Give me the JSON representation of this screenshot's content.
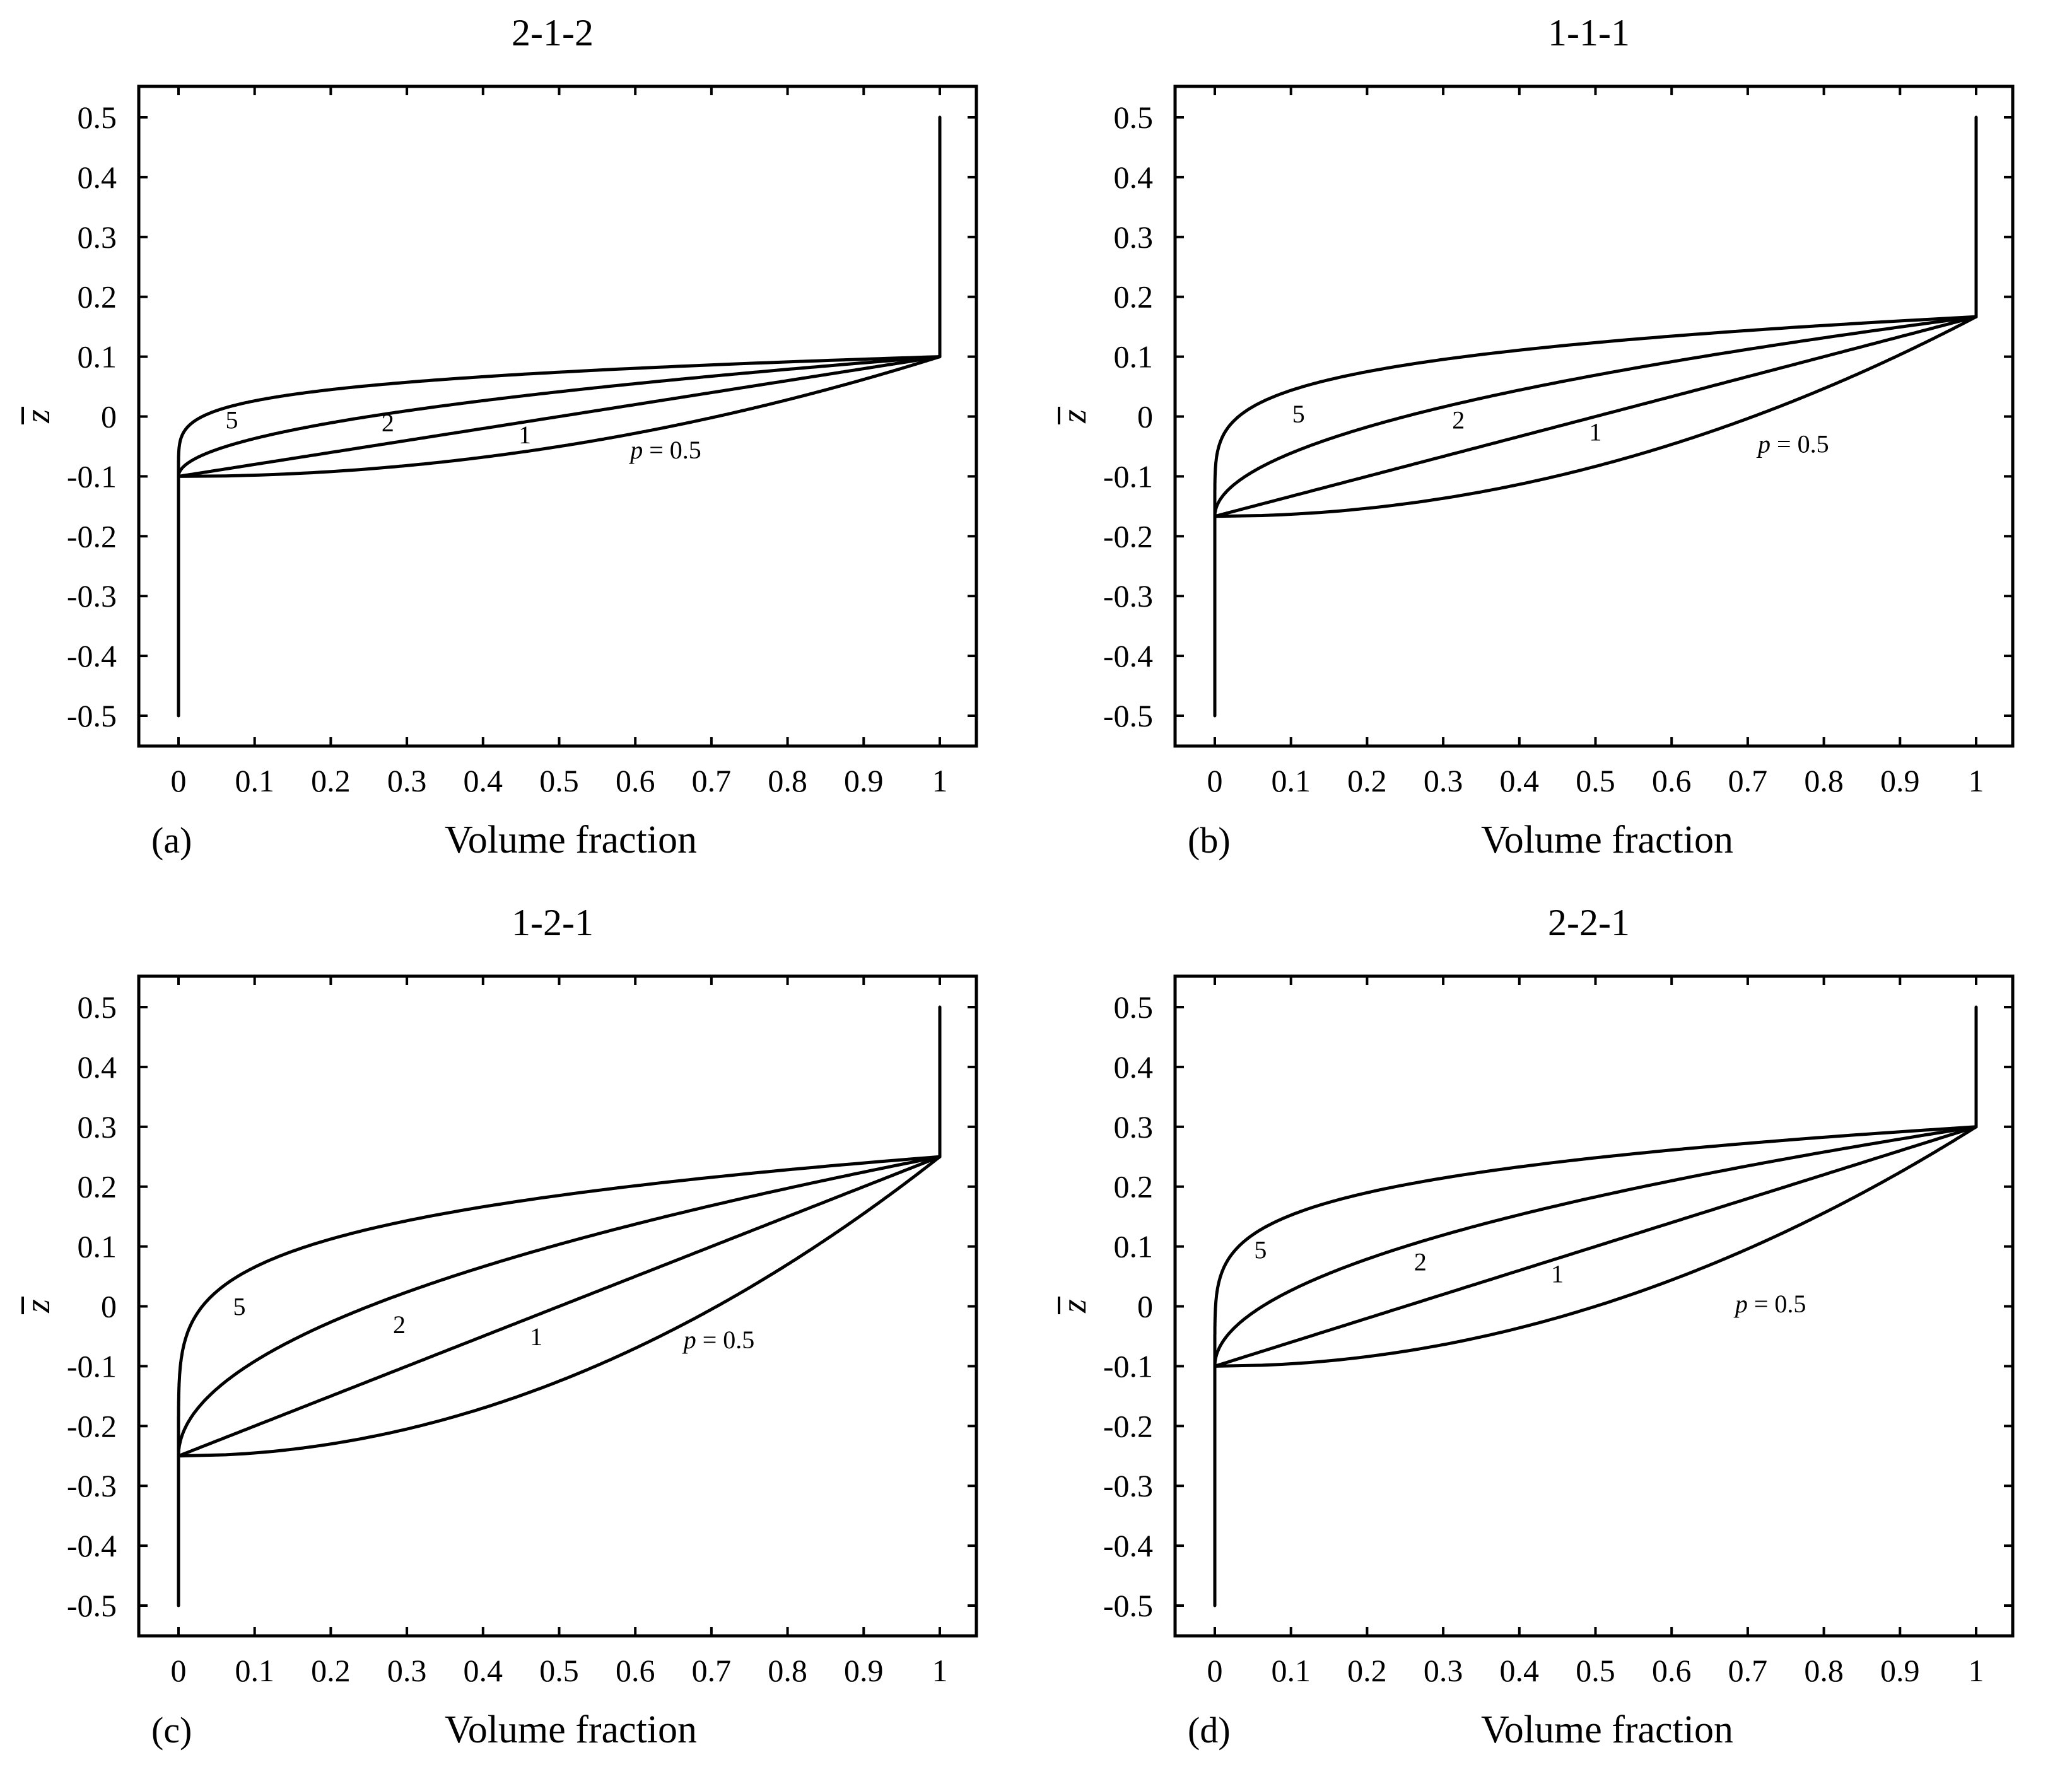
{
  "chart_data": [
    {
      "type": "line",
      "panel_label": "(a)",
      "title": "2-1-2",
      "xlabel": "Volume fraction",
      "ylabel": "z",
      "xlim": [
        0,
        1
      ],
      "ylim": [
        -0.5,
        0.5
      ],
      "x_ticks": [
        "0",
        "0.1",
        "0.2",
        "0.3",
        "0.4",
        "0.5",
        "0.6",
        "0.7",
        "0.8",
        "0.9",
        "1"
      ],
      "y_ticks": [
        "0.5",
        "0.4",
        "0.3",
        "0.2",
        "0.1",
        "0",
        "-0.1",
        "-0.2",
        "-0.3",
        "-0.4",
        "-0.5"
      ],
      "core_bottom": -0.1,
      "core_top": 0.1,
      "series": [
        {
          "name": "p=0.5",
          "p": 0.5,
          "label": "p = 0.5",
          "label_x": 0.64,
          "label_y": -0.07
        },
        {
          "name": "p=1",
          "p": 1,
          "label": "1",
          "label_x": 0.455,
          "label_y": -0.045
        },
        {
          "name": "p=2",
          "p": 2,
          "label": "2",
          "label_x": 0.275,
          "label_y": -0.025
        },
        {
          "name": "p=5",
          "p": 5,
          "label": "5",
          "label_x": 0.07,
          "label_y": -0.02
        }
      ]
    },
    {
      "type": "line",
      "panel_label": "(b)",
      "title": "1-1-1",
      "xlabel": "Volume fraction",
      "ylabel": "z",
      "xlim": [
        0,
        1
      ],
      "ylim": [
        -0.5,
        0.5
      ],
      "x_ticks": [
        "0",
        "0.1",
        "0.2",
        "0.3",
        "0.4",
        "0.5",
        "0.6",
        "0.7",
        "0.8",
        "0.9",
        "1"
      ],
      "y_ticks": [
        "0.5",
        "0.4",
        "0.3",
        "0.2",
        "0.1",
        "0",
        "-0.1",
        "-0.2",
        "-0.3",
        "-0.4",
        "-0.5"
      ],
      "core_bottom": -0.1667,
      "core_top": 0.1667,
      "series": [
        {
          "name": "p=0.5",
          "p": 0.5,
          "label": "p = 0.5",
          "label_x": 0.76,
          "label_y": -0.06
        },
        {
          "name": "p=1",
          "p": 1,
          "label": "1",
          "label_x": 0.5,
          "label_y": -0.04
        },
        {
          "name": "p=2",
          "p": 2,
          "label": "2",
          "label_x": 0.32,
          "label_y": -0.02
        },
        {
          "name": "p=5",
          "p": 5,
          "label": "5",
          "label_x": 0.11,
          "label_y": -0.01
        }
      ]
    },
    {
      "type": "line",
      "panel_label": "(c)",
      "title": "1-2-1",
      "xlabel": "Volume fraction",
      "ylabel": "z",
      "xlim": [
        0,
        1
      ],
      "ylim": [
        -0.5,
        0.5
      ],
      "x_ticks": [
        "0",
        "0.1",
        "0.2",
        "0.3",
        "0.4",
        "0.5",
        "0.6",
        "0.7",
        "0.8",
        "0.9",
        "1"
      ],
      "y_ticks": [
        "0.5",
        "0.4",
        "0.3",
        "0.2",
        "0.1",
        "0",
        "-0.1",
        "-0.2",
        "-0.3",
        "-0.4",
        "-0.5"
      ],
      "core_bottom": -0.25,
      "core_top": 0.25,
      "series": [
        {
          "name": "p=0.5",
          "p": 0.5,
          "label": "p = 0.5",
          "label_x": 0.71,
          "label_y": -0.07
        },
        {
          "name": "p=1",
          "p": 1,
          "label": "1",
          "label_x": 0.47,
          "label_y": -0.065
        },
        {
          "name": "p=2",
          "p": 2,
          "label": "2",
          "label_x": 0.29,
          "label_y": -0.045
        },
        {
          "name": "p=5",
          "p": 5,
          "label": "5",
          "label_x": 0.08,
          "label_y": -0.015
        }
      ]
    },
    {
      "type": "line",
      "panel_label": "(d)",
      "title": "2-2-1",
      "xlabel": "Volume fraction",
      "ylabel": "z",
      "xlim": [
        0,
        1
      ],
      "ylim": [
        -0.5,
        0.5
      ],
      "x_ticks": [
        "0",
        "0.1",
        "0.2",
        "0.3",
        "0.4",
        "0.5",
        "0.6",
        "0.7",
        "0.8",
        "0.9",
        "1"
      ],
      "y_ticks": [
        "0.5",
        "0.4",
        "0.3",
        "0.2",
        "0.1",
        "0",
        "-0.1",
        "-0.2",
        "-0.3",
        "-0.4",
        "-0.5"
      ],
      "core_bottom": -0.1,
      "core_top": 0.3,
      "series": [
        {
          "name": "p=0.5",
          "p": 0.5,
          "label": "p = 0.5",
          "label_x": 0.73,
          "label_y": -0.01
        },
        {
          "name": "p=1",
          "p": 1,
          "label": "1",
          "label_x": 0.45,
          "label_y": 0.04
        },
        {
          "name": "p=2",
          "p": 2,
          "label": "2",
          "label_x": 0.27,
          "label_y": 0.06
        },
        {
          "name": "p=5",
          "p": 5,
          "label": "5",
          "label_x": 0.06,
          "label_y": 0.08
        }
      ]
    }
  ]
}
